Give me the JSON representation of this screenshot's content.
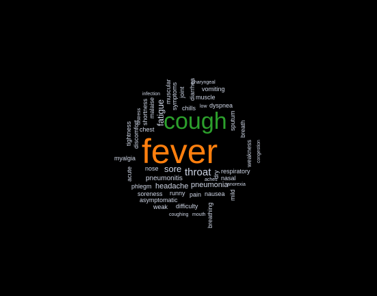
{
  "colors": {
    "background": "#000000",
    "primary_word": "#ff7f0e",
    "secondary_word": "#2ca02c",
    "other_words": "#cfd6e6"
  },
  "words": [
    {
      "text": "fever",
      "color": "#ff7f0e"
    },
    {
      "text": "cough",
      "color": "#2ca02c"
    },
    {
      "text": "throat"
    },
    {
      "text": "sore"
    },
    {
      "text": "fatigue"
    },
    {
      "text": "headache"
    },
    {
      "text": "pneumonitis"
    },
    {
      "text": "pneumonia"
    },
    {
      "text": "chest"
    },
    {
      "text": "chills"
    },
    {
      "text": "dyspnea"
    },
    {
      "text": "vomiting"
    },
    {
      "text": "muscle"
    },
    {
      "text": "runny"
    },
    {
      "text": "pain"
    },
    {
      "text": "nausea"
    },
    {
      "text": "nasal"
    },
    {
      "text": "respiratory"
    },
    {
      "text": "asymptomatic"
    },
    {
      "text": "soreness"
    },
    {
      "text": "difficulty"
    },
    {
      "text": "weak"
    },
    {
      "text": "phlegm"
    },
    {
      "text": "nose"
    },
    {
      "text": "myalgia"
    },
    {
      "text": "coughing"
    },
    {
      "text": "mouth"
    },
    {
      "text": "aches"
    },
    {
      "text": "anorexia"
    },
    {
      "text": "infection"
    },
    {
      "text": "low"
    },
    {
      "text": "pharyngeal"
    },
    {
      "text": "muscular"
    },
    {
      "text": "symptoms"
    },
    {
      "text": "joint"
    },
    {
      "text": "diarrhea"
    },
    {
      "text": "malaise"
    },
    {
      "text": "shortness"
    },
    {
      "text": "distress"
    },
    {
      "text": "discomfort"
    },
    {
      "text": "tightness"
    },
    {
      "text": "acute"
    },
    {
      "text": "dry"
    },
    {
      "text": "mild"
    },
    {
      "text": "sputum"
    },
    {
      "text": "breath"
    },
    {
      "text": "weakness"
    },
    {
      "text": "congestion"
    },
    {
      "text": "breathing"
    }
  ]
}
